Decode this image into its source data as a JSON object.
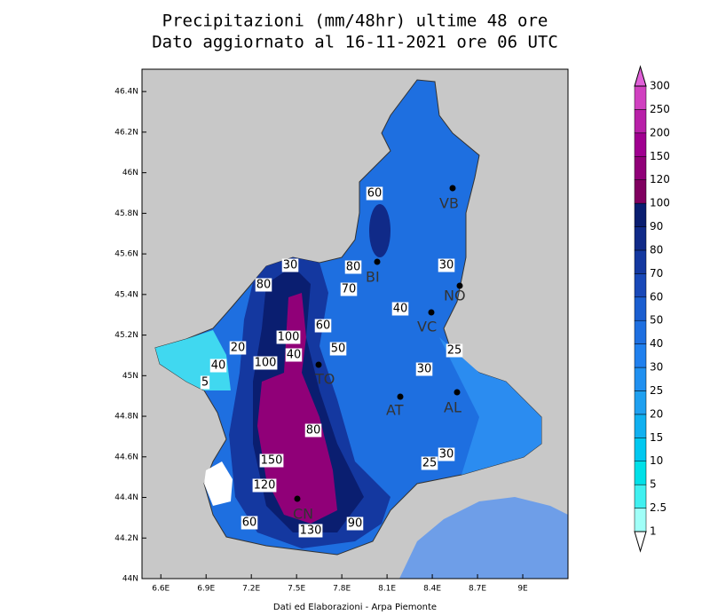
{
  "map_data": {
    "title": [
      "Precipitazioni (mm/48hr) ultime 48 ore",
      "Dato aggiornato al 16-11-2021 ore 06 UTC"
    ],
    "xlim": [
      6.475,
      9.3
    ],
    "ylim": [
      44,
      46.51
    ],
    "xticks": [
      {
        "value": 6.6,
        "label": "6.6E"
      },
      {
        "value": 6.9,
        "label": "6.9E"
      },
      {
        "value": 7.2,
        "label": "7.2E"
      },
      {
        "value": 7.5,
        "label": "7.5E"
      },
      {
        "value": 7.8,
        "label": "7.8E"
      },
      {
        "value": 8.1,
        "label": "8.1E"
      },
      {
        "value": 8.4,
        "label": "8.4E"
      },
      {
        "value": 8.7,
        "label": "8.7E"
      },
      {
        "value": 9,
        "label": "9E"
      }
    ],
    "yticks": [
      {
        "value": 44,
        "label": "44N"
      },
      {
        "value": 44.2,
        "label": "44.2N"
      },
      {
        "value": 44.4,
        "label": "44.4N"
      },
      {
        "value": 44.6,
        "label": "44.6N"
      },
      {
        "value": 44.8,
        "label": "44.8N"
      },
      {
        "value": 45,
        "label": "45N"
      },
      {
        "value": 45.2,
        "label": "45.2N"
      },
      {
        "value": 45.4,
        "label": "45.4N"
      },
      {
        "value": 45.6,
        "label": "45.6N"
      },
      {
        "value": 45.8,
        "label": "45.8N"
      },
      {
        "value": 46,
        "label": "46N"
      },
      {
        "value": 46.2,
        "label": "46.2N"
      },
      {
        "value": 46.4,
        "label": "46.4N"
      }
    ],
    "colorbar": {
      "levels": [
        1,
        2.5,
        5,
        10,
        15,
        20,
        25,
        30,
        40,
        50,
        60,
        70,
        80,
        90,
        100,
        120,
        150,
        200,
        250,
        300
      ],
      "colors": [
        "#ffffff",
        "#a0fff8",
        "#40f0f0",
        "#00e0e8",
        "#00c8f0",
        "#10b0f0",
        "#1fa0f0",
        "#2090f0",
        "#2080ee",
        "#1e6fe0",
        "#1a5ed0",
        "#1848b8",
        "#1438a0",
        "#102a88",
        "#0a1e70",
        "#800060",
        "#900078",
        "#a00090",
        "#b820a8",
        "#d040c0",
        "#e060d8"
      ]
    },
    "cities": [
      "VB",
      "BI",
      "NO",
      "VC",
      "TO",
      "AT",
      "AL",
      "CN"
    ],
    "contour_labels": [
      60,
      80,
      70,
      30,
      80,
      60,
      100,
      50,
      40,
      20,
      40,
      5,
      100,
      30,
      40,
      30,
      25,
      30,
      25,
      80,
      150,
      120,
      60,
      130,
      90
    ],
    "footer": "Dati ed Elaborazioni - Arpa Piemonte"
  }
}
